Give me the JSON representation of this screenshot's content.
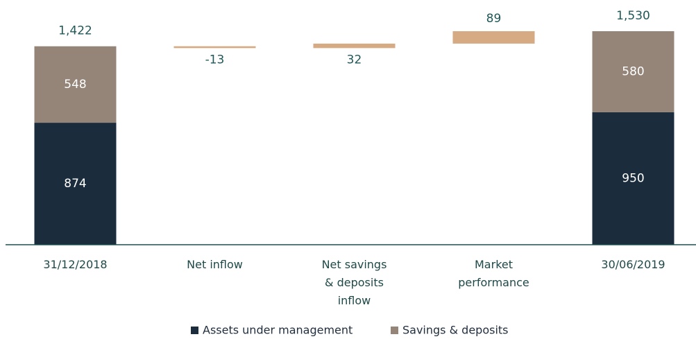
{
  "chart_data": {
    "type": "waterfall",
    "categories": [
      "31/12/2018",
      "Net inflow",
      "Net savings & deposits inflow",
      "Market performance",
      "30/06/2019"
    ],
    "series": [
      {
        "name": "Assets under management",
        "color": "#1b2d3d",
        "values": [
          874,
          null,
          null,
          null,
          950
        ]
      },
      {
        "name": "Savings & deposits",
        "color": "#958579",
        "values": [
          548,
          null,
          null,
          null,
          580
        ]
      }
    ],
    "totals": {
      "values": [
        1422,
        null,
        null,
        null,
        1530
      ],
      "value_labels": [
        "1,422",
        null,
        null,
        null,
        "1,530"
      ]
    },
    "changes": {
      "color": "#d6aa83",
      "values": [
        null,
        -13,
        32,
        89,
        null
      ]
    }
  }
}
